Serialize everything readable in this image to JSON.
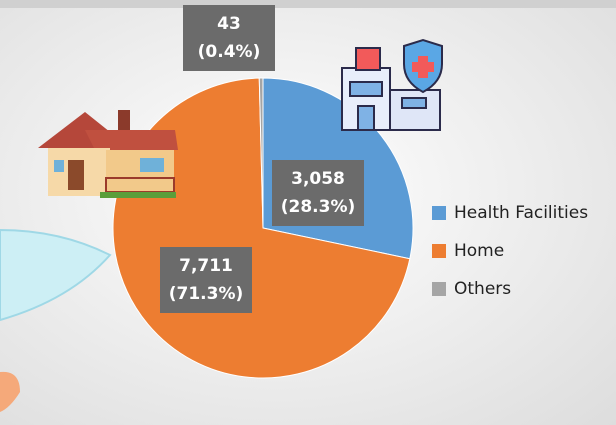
{
  "chart_data": {
    "type": "pie",
    "categories": [
      "Health Facilities",
      "Home",
      "Others"
    ],
    "values": [
      3058,
      7711,
      43
    ],
    "value_labels": [
      "3,058",
      "7,711",
      "43"
    ],
    "percent_labels": [
      "(28.3%)",
      "(71.3%)",
      "(0.4%)"
    ],
    "colors": [
      "#5b9bd5",
      "#ed7d31",
      "#a5a5a5"
    ],
    "legend": "right"
  }
}
